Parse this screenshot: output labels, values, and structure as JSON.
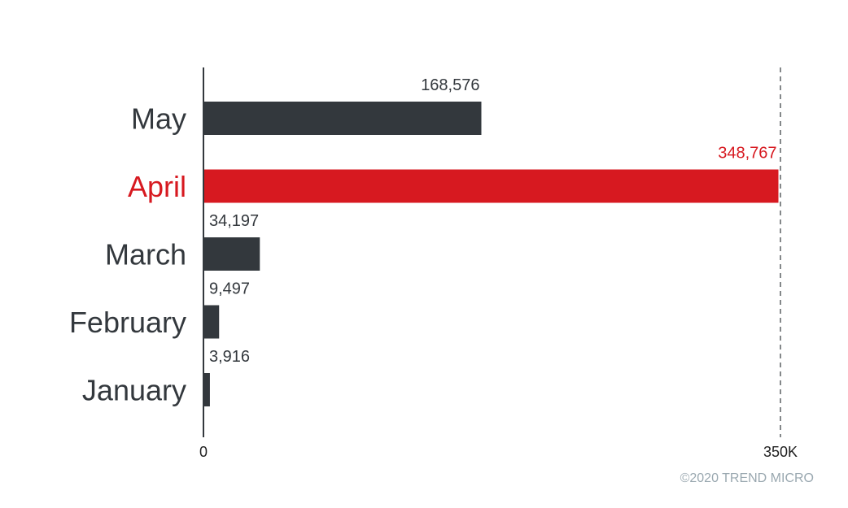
{
  "chart_data": {
    "type": "bar",
    "orientation": "horizontal",
    "categories": [
      "May",
      "April",
      "March",
      "February",
      "January"
    ],
    "values": [
      168576,
      348767,
      34197,
      9497,
      3916
    ],
    "value_labels": [
      "168,576",
      "348,767",
      "34,197",
      "9,497",
      "3,916"
    ],
    "highlight_category": "April",
    "xlim": [
      0,
      350000
    ],
    "x_ticks": [
      {
        "value": 0,
        "label": "0"
      },
      {
        "value": 350000,
        "label": "350K"
      }
    ],
    "reference_line": {
      "value": 350000,
      "style": "dashed"
    },
    "grid": false,
    "title": "",
    "xlabel": "",
    "ylabel": ""
  },
  "credit": "©2020 TREND MICRO",
  "colors": {
    "bar": "#33383d",
    "highlight": "#d71920",
    "text": "#33383d",
    "axis": "#33383d",
    "credit": "#9aa8b0"
  }
}
